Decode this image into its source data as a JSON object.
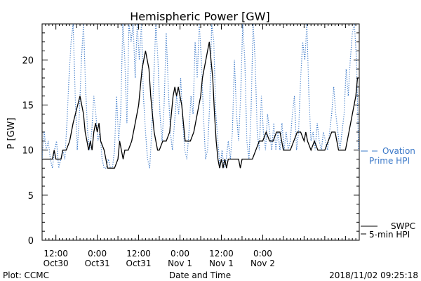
{
  "chart_data": {
    "type": "line",
    "title": "Hemispheric Power [GW]",
    "ylabel": "P [GW]",
    "xlabel": "Date and Time",
    "ylim": [
      0,
      24
    ],
    "yticks": [
      0,
      5,
      10,
      15,
      20
    ],
    "xlim_hours": [
      0,
      92
    ],
    "x_ticks": [
      {
        "hour": 4,
        "time": "12:00",
        "date": "Oct30"
      },
      {
        "hour": 16,
        "time": "0:00",
        "date": "Oct31"
      },
      {
        "hour": 28,
        "time": "12:00",
        "date": "Oct31"
      },
      {
        "hour": 40,
        "time": "0:00",
        "date": "Nov 1"
      },
      {
        "hour": 52,
        "time": "12:00",
        "date": "Nov 1"
      },
      {
        "hour": 64,
        "time": "0:00",
        "date": "Nov 2"
      }
    ],
    "series": [
      {
        "name": "SWPC 5-min HPI",
        "color": "#000000",
        "style": "solid",
        "points": [
          [
            0,
            9
          ],
          [
            3,
            9
          ],
          [
            3.5,
            10
          ],
          [
            4,
            9
          ],
          [
            5.5,
            9
          ],
          [
            6,
            10
          ],
          [
            7,
            10
          ],
          [
            8,
            11
          ],
          [
            9,
            13
          ],
          [
            10,
            14.5
          ],
          [
            11,
            16
          ],
          [
            11.5,
            15
          ],
          [
            12,
            14
          ],
          [
            12.5,
            12
          ],
          [
            13,
            11
          ],
          [
            13.5,
            10
          ],
          [
            14,
            11
          ],
          [
            14.5,
            10
          ],
          [
            15,
            12
          ],
          [
            15.5,
            13
          ],
          [
            16,
            12
          ],
          [
            16.5,
            13
          ],
          [
            17,
            11
          ],
          [
            18,
            10
          ],
          [
            18.5,
            9
          ],
          [
            19,
            8
          ],
          [
            21,
            8
          ],
          [
            22,
            9
          ],
          [
            22.5,
            11
          ],
          [
            23,
            10
          ],
          [
            23.5,
            9
          ],
          [
            24,
            10
          ],
          [
            25,
            10
          ],
          [
            26,
            11
          ],
          [
            27,
            13
          ],
          [
            28,
            15
          ],
          [
            28.5,
            17
          ],
          [
            29,
            19
          ],
          [
            29.5,
            20
          ],
          [
            30,
            21
          ],
          [
            30.5,
            20
          ],
          [
            31,
            19
          ],
          [
            31.5,
            16
          ],
          [
            32,
            14
          ],
          [
            32.5,
            12
          ],
          [
            33,
            11
          ],
          [
            33.5,
            10
          ],
          [
            34,
            10
          ],
          [
            35,
            11
          ],
          [
            36,
            11
          ],
          [
            37,
            12
          ],
          [
            37.5,
            14
          ],
          [
            38,
            16
          ],
          [
            38.5,
            17
          ],
          [
            39,
            16
          ],
          [
            39.5,
            17
          ],
          [
            40,
            16
          ],
          [
            40.5,
            15
          ],
          [
            41,
            13
          ],
          [
            41.5,
            11
          ],
          [
            42,
            11
          ],
          [
            43,
            11
          ],
          [
            44,
            12
          ],
          [
            45,
            14
          ],
          [
            46,
            16
          ],
          [
            46.5,
            18
          ],
          [
            47,
            19
          ],
          [
            47.5,
            20
          ],
          [
            48,
            21
          ],
          [
            48.5,
            22
          ],
          [
            49,
            20
          ],
          [
            49.5,
            18
          ],
          [
            50,
            14
          ],
          [
            50.5,
            11
          ],
          [
            51,
            9
          ],
          [
            51.5,
            8
          ],
          [
            52,
            9
          ],
          [
            52.5,
            8
          ],
          [
            53,
            9
          ],
          [
            53.5,
            8
          ],
          [
            54,
            9
          ],
          [
            55,
            9
          ],
          [
            57,
            9
          ],
          [
            57.5,
            8
          ],
          [
            58,
            9
          ],
          [
            60,
            9
          ],
          [
            61,
            9
          ],
          [
            62,
            10
          ],
          [
            63,
            11
          ],
          [
            64,
            11
          ],
          [
            65,
            12
          ],
          [
            66,
            11
          ],
          [
            67,
            11
          ],
          [
            68,
            12
          ],
          [
            69,
            12
          ],
          [
            70,
            10
          ],
          [
            72,
            10
          ],
          [
            73,
            11
          ],
          [
            74,
            12
          ],
          [
            75,
            12
          ],
          [
            76,
            11
          ],
          [
            76.5,
            12
          ],
          [
            77,
            11
          ],
          [
            78,
            10
          ],
          [
            79,
            11
          ],
          [
            80,
            10
          ],
          [
            82,
            10
          ],
          [
            83,
            11
          ],
          [
            84,
            12
          ],
          [
            85,
            12
          ],
          [
            86,
            10
          ],
          [
            88,
            10
          ],
          [
            89,
            12
          ],
          [
            90,
            14
          ],
          [
            91,
            16
          ],
          [
            91.5,
            18
          ],
          [
            92,
            18
          ]
        ]
      },
      {
        "name": "Ovation Prime HPI",
        "color": "#3a78c8",
        "style": "dotted",
        "points": [
          [
            0,
            9
          ],
          [
            0.6,
            12
          ],
          [
            1.2,
            10
          ],
          [
            1.8,
            11
          ],
          [
            2.4,
            9
          ],
          [
            3,
            8
          ],
          [
            3.6,
            10
          ],
          [
            4.2,
            11
          ],
          [
            4.8,
            8
          ],
          [
            5.4,
            9
          ],
          [
            6,
            10
          ],
          [
            6.6,
            9
          ],
          [
            7.2,
            13
          ],
          [
            7.8,
            18
          ],
          [
            8.4,
            22
          ],
          [
            9,
            24
          ],
          [
            9.6,
            16
          ],
          [
            10.2,
            10
          ],
          [
            10.8,
            14
          ],
          [
            11.4,
            20
          ],
          [
            12,
            24
          ],
          [
            12.6,
            17
          ],
          [
            13.2,
            12
          ],
          [
            13.8,
            10
          ],
          [
            14.4,
            12
          ],
          [
            15,
            16
          ],
          [
            15.6,
            14
          ],
          [
            16.2,
            11
          ],
          [
            16.8,
            12
          ],
          [
            17.4,
            9
          ],
          [
            18,
            8
          ],
          [
            18.6,
            8
          ],
          [
            19.2,
            9
          ],
          [
            19.8,
            8
          ],
          [
            20.4,
            8
          ],
          [
            21,
            10
          ],
          [
            21.6,
            16
          ],
          [
            22.2,
            11
          ],
          [
            22.8,
            14
          ],
          [
            23.4,
            24
          ],
          [
            24,
            20
          ],
          [
            24.6,
            13
          ],
          [
            25.2,
            24
          ],
          [
            25.8,
            22
          ],
          [
            26.4,
            24
          ],
          [
            27,
            18
          ],
          [
            27.6,
            24
          ],
          [
            28.2,
            20
          ],
          [
            28.8,
            24
          ],
          [
            29.4,
            16
          ],
          [
            30,
            12
          ],
          [
            30.6,
            9
          ],
          [
            31.2,
            8
          ],
          [
            31.8,
            12
          ],
          [
            32.4,
            18
          ],
          [
            33,
            24
          ],
          [
            33.6,
            20
          ],
          [
            34.2,
            14
          ],
          [
            34.8,
            11
          ],
          [
            35.4,
            15
          ],
          [
            36,
            23
          ],
          [
            36.6,
            17
          ],
          [
            37.2,
            12
          ],
          [
            37.8,
            10
          ],
          [
            38.4,
            13
          ],
          [
            39,
            16
          ],
          [
            39.6,
            14
          ],
          [
            40.2,
            18
          ],
          [
            40.8,
            13
          ],
          [
            41.4,
            10
          ],
          [
            42,
            9
          ],
          [
            42.6,
            12
          ],
          [
            43.2,
            16
          ],
          [
            43.8,
            14
          ],
          [
            44.4,
            22
          ],
          [
            45,
            18
          ],
          [
            45.6,
            24
          ],
          [
            46.2,
            20
          ],
          [
            46.8,
            14
          ],
          [
            47.4,
            9
          ],
          [
            48,
            10
          ],
          [
            48.6,
            15
          ],
          [
            49.2,
            24
          ],
          [
            49.8,
            22
          ],
          [
            50.4,
            14
          ],
          [
            51,
            11
          ],
          [
            51.6,
            8
          ],
          [
            52.2,
            10
          ],
          [
            52.8,
            8
          ],
          [
            53.4,
            9
          ],
          [
            54,
            11
          ],
          [
            54.6,
            9
          ],
          [
            55.2,
            12
          ],
          [
            55.8,
            20
          ],
          [
            56.4,
            14
          ],
          [
            57,
            11
          ],
          [
            57.6,
            16
          ],
          [
            58.2,
            24
          ],
          [
            58.8,
            20
          ],
          [
            59.4,
            11
          ],
          [
            60,
            9
          ],
          [
            60.6,
            14
          ],
          [
            61.2,
            24
          ],
          [
            61.8,
            20
          ],
          [
            62.4,
            12
          ],
          [
            63,
            10
          ],
          [
            63.6,
            16
          ],
          [
            64.2,
            12
          ],
          [
            64.8,
            10
          ],
          [
            65.4,
            14
          ],
          [
            66,
            12
          ],
          [
            66.6,
            10
          ],
          [
            67.2,
            13
          ],
          [
            67.8,
            10
          ],
          [
            68.4,
            12
          ],
          [
            69,
            10
          ],
          [
            69.6,
            13
          ],
          [
            70.2,
            10
          ],
          [
            70.8,
            12
          ],
          [
            71.4,
            10
          ],
          [
            72,
            11
          ],
          [
            72.6,
            14
          ],
          [
            73.2,
            16
          ],
          [
            73.8,
            10
          ],
          [
            74.4,
            12
          ],
          [
            75,
            18
          ],
          [
            75.6,
            22
          ],
          [
            76.2,
            20
          ],
          [
            76.8,
            24
          ],
          [
            77.4,
            16
          ],
          [
            78,
            11
          ],
          [
            78.6,
            12
          ],
          [
            79.2,
            10
          ],
          [
            79.8,
            13
          ],
          [
            80.4,
            11
          ],
          [
            81,
            10
          ],
          [
            81.6,
            12
          ],
          [
            82.2,
            11
          ],
          [
            82.8,
            10
          ],
          [
            83.4,
            12
          ],
          [
            84,
            14
          ],
          [
            84.6,
            17
          ],
          [
            85.2,
            14
          ],
          [
            85.8,
            12
          ],
          [
            86.4,
            10
          ],
          [
            87,
            12
          ],
          [
            87.6,
            14
          ],
          [
            88.2,
            19
          ],
          [
            88.8,
            16
          ],
          [
            89.4,
            20
          ],
          [
            90,
            23
          ],
          [
            90.6,
            24
          ],
          [
            91.2,
            20
          ],
          [
            91.8,
            10
          ],
          [
            92,
            10
          ]
        ]
      }
    ],
    "legend": {
      "position": "right",
      "blue_line1": "Ovation",
      "blue_line2": "Prime HPI",
      "black_line1": "SWPC",
      "black_line2": "5-min HPI"
    }
  },
  "footer": {
    "plot_credit": "Plot: CCMC",
    "timestamp": "2018/11/02 09:25:18"
  }
}
